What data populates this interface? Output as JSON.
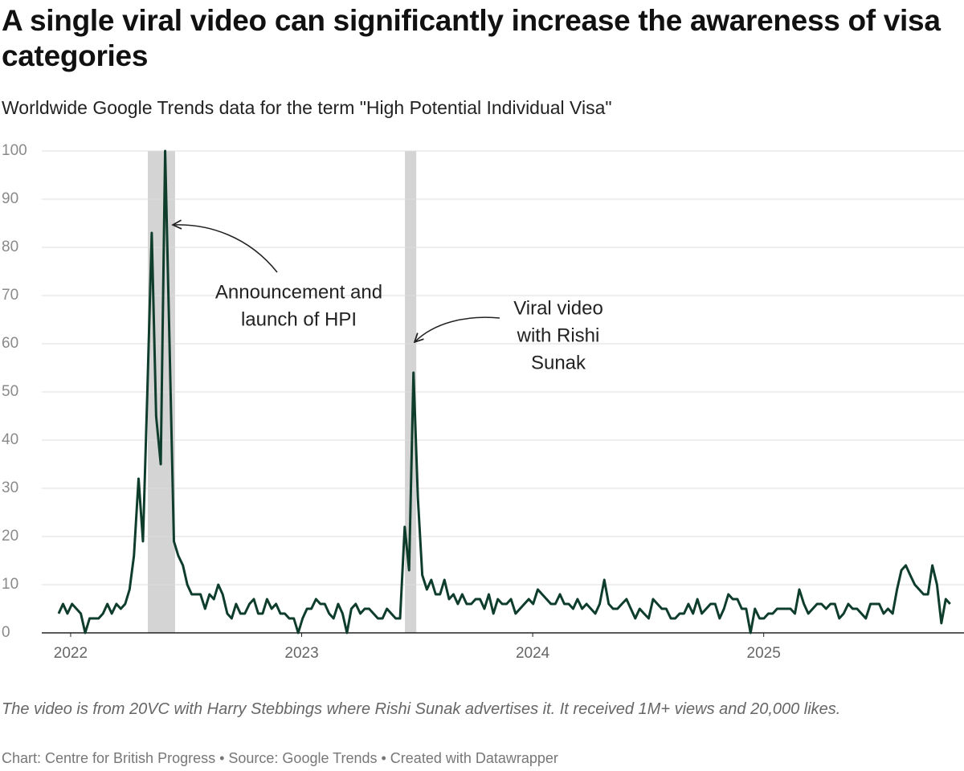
{
  "chart_data": {
    "type": "line",
    "title": "A single viral video can significantly increase the awareness of visa categories",
    "subtitle": "Worldwide Google Trends data for the term \"High Potential Individual Visa\"",
    "note": "The video is from 20VC with Harry Stebbings where Rishi Sunak advertises it. It received 1M+ views and 20,000 likes.",
    "credit": "Chart: Centre for British Progress • Source: Google Trends • Created with Datawrapper",
    "xlim": [
      2021.875,
      2025.86
    ],
    "xticks": [
      2022,
      2023,
      2024,
      2025
    ],
    "ylim": [
      0,
      100
    ],
    "yticks": [
      0,
      10,
      20,
      30,
      40,
      50,
      60,
      70,
      80,
      90,
      100
    ],
    "grid": true,
    "highlights": [
      {
        "range": [
          2022.334,
          2022.452
        ]
      },
      {
        "range": [
          2023.447,
          2023.496
        ]
      }
    ],
    "highlight_color": "#d4d4d4",
    "annotations": [
      {
        "lines": [
          "Announcement and",
          "launch of HPI"
        ]
      },
      {
        "lines": [
          "Viral video",
          "with Rishi",
          "Sunak"
        ]
      }
    ],
    "x": [
      2021.948,
      2021.967,
      2021.986,
      2022.006,
      2022.025,
      2022.044,
      2022.063,
      2022.082,
      2022.102,
      2022.121,
      2022.14,
      2022.159,
      2022.178,
      2022.198,
      2022.217,
      2022.236,
      2022.255,
      2022.274,
      2022.294,
      2022.313,
      2022.332,
      2022.351,
      2022.37,
      2022.39,
      2022.409,
      2022.428,
      2022.447,
      2022.466,
      2022.486,
      2022.505,
      2022.524,
      2022.543,
      2022.562,
      2022.582,
      2022.601,
      2022.62,
      2022.639,
      2022.658,
      2022.678,
      2022.697,
      2022.716,
      2022.735,
      2022.754,
      2022.774,
      2022.793,
      2022.812,
      2022.831,
      2022.85,
      2022.87,
      2022.889,
      2022.908,
      2022.927,
      2022.946,
      2022.966,
      2022.985,
      2023.004,
      2023.023,
      2023.042,
      2023.062,
      2023.081,
      2023.1,
      2023.119,
      2023.138,
      2023.158,
      2023.177,
      2023.196,
      2023.215,
      2023.234,
      2023.254,
      2023.273,
      2023.292,
      2023.311,
      2023.33,
      2023.35,
      2023.369,
      2023.388,
      2023.407,
      2023.426,
      2023.446,
      2023.465,
      2023.484,
      2023.503,
      2023.522,
      2023.542,
      2023.561,
      2023.58,
      2023.599,
      2023.618,
      2023.638,
      2023.657,
      2023.676,
      2023.695,
      2023.714,
      2023.734,
      2023.753,
      2023.772,
      2023.791,
      2023.81,
      2023.83,
      2023.849,
      2023.868,
      2023.887,
      2023.906,
      2023.926,
      2023.945,
      2023.964,
      2023.983,
      2024.002,
      2024.022,
      2024.041,
      2024.06,
      2024.079,
      2024.098,
      2024.118,
      2024.137,
      2024.156,
      2024.175,
      2024.194,
      2024.214,
      2024.233,
      2024.252,
      2024.271,
      2024.29,
      2024.31,
      2024.329,
      2024.348,
      2024.367,
      2024.386,
      2024.406,
      2024.425,
      2024.444,
      2024.463,
      2024.482,
      2024.502,
      2024.521,
      2024.54,
      2024.559,
      2024.578,
      2024.598,
      2024.617,
      2024.636,
      2024.655,
      2024.674,
      2024.694,
      2024.713,
      2024.732,
      2024.751,
      2024.77,
      2024.79,
      2024.809,
      2024.828,
      2024.847,
      2024.866,
      2024.886,
      2024.905,
      2024.924,
      2024.943,
      2024.962,
      2024.982,
      2025.001,
      2025.02,
      2025.039,
      2025.058,
      2025.078,
      2025.097,
      2025.116,
      2025.135,
      2025.154,
      2025.174,
      2025.193,
      2025.212,
      2025.231,
      2025.25,
      2025.27,
      2025.289,
      2025.308,
      2025.327,
      2025.346,
      2025.366,
      2025.385,
      2025.404,
      2025.423,
      2025.442,
      2025.462,
      2025.481,
      2025.5,
      2025.519,
      2025.538,
      2025.558,
      2025.577,
      2025.596,
      2025.615,
      2025.634,
      2025.654,
      2025.673,
      2025.692,
      2025.711,
      2025.73,
      2025.75,
      2025.769,
      2025.788,
      2025.807
    ],
    "series": [
      {
        "color": "#0f3d2c",
        "values": [
          4,
          6,
          4,
          6,
          5,
          4,
          0,
          3,
          3,
          3,
          4,
          6,
          4,
          6,
          5,
          6,
          9,
          16,
          32,
          19,
          50,
          83,
          45,
          35,
          100,
          60,
          19,
          16,
          14,
          10,
          8,
          8,
          8,
          5,
          8,
          7,
          10,
          8,
          4,
          3,
          6,
          4,
          4,
          6,
          7,
          4,
          4,
          7,
          5,
          6,
          4,
          4,
          3,
          3,
          0,
          3,
          5,
          5,
          7,
          6,
          6,
          4,
          3,
          6,
          4,
          0,
          5,
          6,
          4,
          5,
          5,
          4,
          3,
          3,
          5,
          4,
          3,
          3,
          22,
          13,
          54,
          28,
          12,
          9,
          11,
          8,
          8,
          11,
          7,
          8,
          6,
          8,
          6,
          6,
          7,
          7,
          5,
          8,
          4,
          7,
          6,
          6,
          7,
          4,
          5,
          6,
          7,
          6,
          9,
          8,
          7,
          6,
          6,
          8,
          6,
          6,
          5,
          7,
          5,
          6,
          5,
          4,
          6,
          11,
          6,
          5,
          5,
          6,
          7,
          5,
          3,
          5,
          4,
          3,
          7,
          6,
          5,
          5,
          3,
          3,
          4,
          4,
          6,
          4,
          7,
          4,
          5,
          6,
          6,
          3,
          5,
          8,
          7,
          7,
          5,
          5,
          0,
          5,
          3,
          3,
          4,
          4,
          5,
          5,
          5,
          5,
          4,
          9,
          6,
          4,
          5,
          6,
          6,
          5,
          6,
          6,
          3,
          4,
          6,
          5,
          5,
          4,
          3,
          6,
          6,
          6,
          4,
          5,
          4,
          9,
          13,
          14,
          12,
          10,
          9,
          8,
          8,
          14,
          10,
          2,
          7,
          6
        ]
      }
    ]
  }
}
